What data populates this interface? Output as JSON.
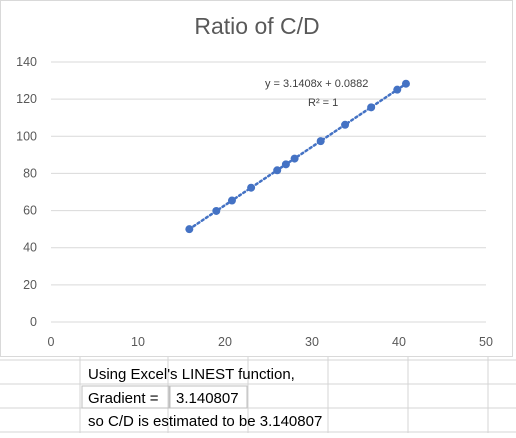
{
  "chart_data": {
    "type": "scatter",
    "title": "Ratio of C/D",
    "xlabel": "",
    "ylabel": "",
    "xlim": [
      0,
      50
    ],
    "ylim": [
      0,
      140
    ],
    "x_ticks": [
      "0",
      "10",
      "20",
      "30",
      "40",
      "50"
    ],
    "y_ticks": [
      "0",
      "20",
      "40",
      "60",
      "80",
      "100",
      "120",
      "140"
    ],
    "grid": "horizontal",
    "marker_color": "#4472c4",
    "trendline": {
      "style": "dotted",
      "color": "#4472c4",
      "slope": 3.1408,
      "intercept": 0.0882,
      "equation": "y = 3.1408x + 0.0882",
      "r_squared": "R² = 1"
    },
    "series": [
      {
        "x": [
          15.9,
          19.0,
          20.8,
          23.0,
          26.0,
          27.0,
          28.0,
          31.0,
          33.8,
          36.8,
          39.8,
          40.8
        ],
        "y": [
          50.0,
          59.8,
          65.4,
          72.3,
          81.7,
          84.9,
          88.0,
          97.4,
          106.2,
          115.6,
          125.1,
          128.3
        ]
      }
    ]
  },
  "sheet": {
    "line1": "Using Excel's LINEST function,",
    "line2_label": "Gradient =",
    "line2_value": "3.140807",
    "line3": "so C/D is estimated to be 3.140807"
  }
}
